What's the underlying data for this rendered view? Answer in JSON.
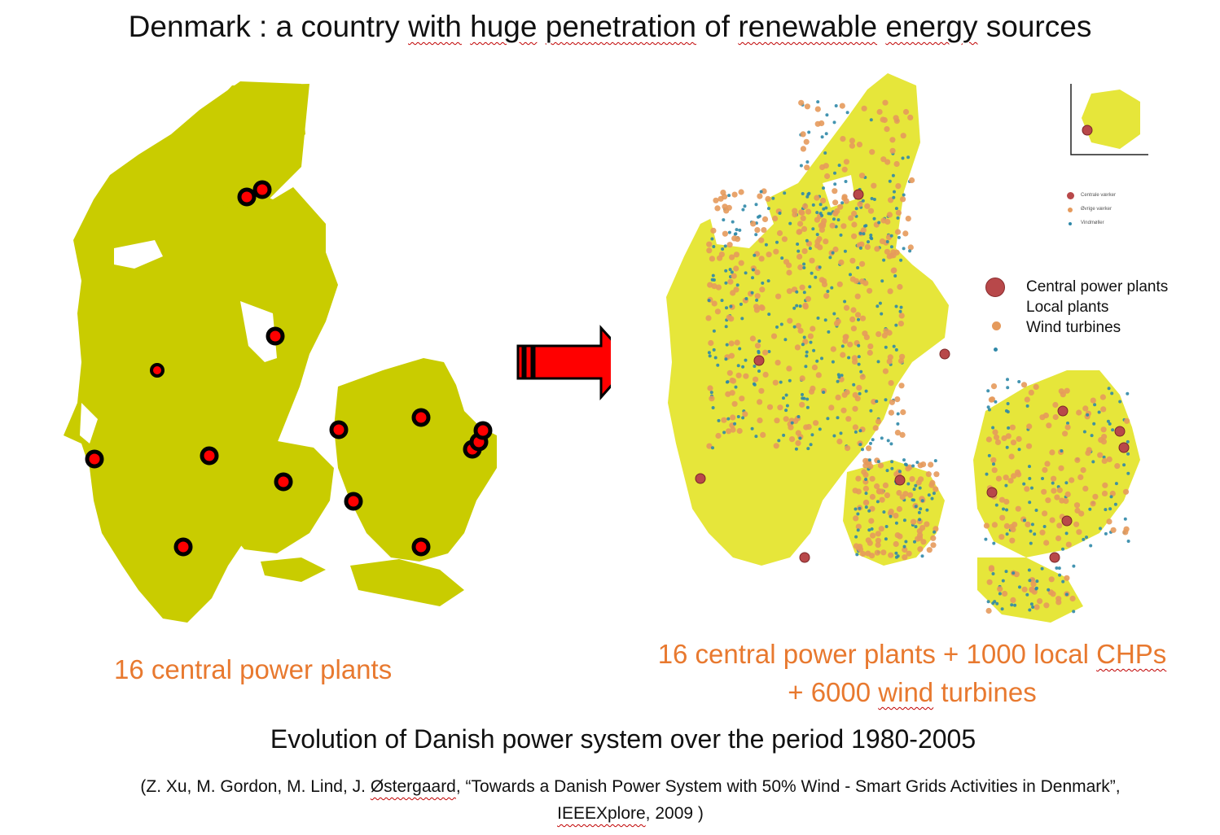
{
  "slide": {
    "title_prefix": "Denmark : a country ",
    "title_with": "with",
    "title_sp1": " ",
    "title_huge": "huge",
    "title_sp2": " ",
    "title_penetration": "penetration",
    "title_of": " of ",
    "title_renewable": "renewable",
    "title_sp3": " ",
    "title_energy": "energy",
    "title_sources": " sources"
  },
  "left_caption": "16 central power plants",
  "right_caption": {
    "line1_a": "16 central power plants + 1000 local ",
    "line1_chps": "CHPs",
    "line2_a": "+ 6000 ",
    "line2_wind": "wind",
    "line2_b": " turbines"
  },
  "evolution_text": "Evolution of Danish power system over the period 1980-2005",
  "citation": {
    "line1_a": "(Z. Xu, M. Gordon, M. Lind, J. ",
    "line1_author": "Østergaard",
    "line1_b": ", “Towards a Danish Power System with 50% Wind - Smart Grids Activities in Denmark”,",
    "line2_pub": "IEEEXplore",
    "line2_b": ", 2009 )"
  },
  "legend": {
    "central": "Central power plants",
    "local": "Local plants",
    "wind": "Wind turbines"
  },
  "small_legend": {
    "central": "Centrale værker",
    "local": "Øvrige værker",
    "wind": "Vindmøller"
  },
  "colors": {
    "land_left": "#c9cc00",
    "land_right": "#e6e63a",
    "plant_fill": "#ff0000",
    "plant_ring": "#000000",
    "central_right": "#b8484a",
    "local_right": "#e59a5c",
    "wind_right": "#2f88a8",
    "caption": "#e8792f"
  },
  "icons": {
    "arrow": "arrow-right-icon"
  }
}
